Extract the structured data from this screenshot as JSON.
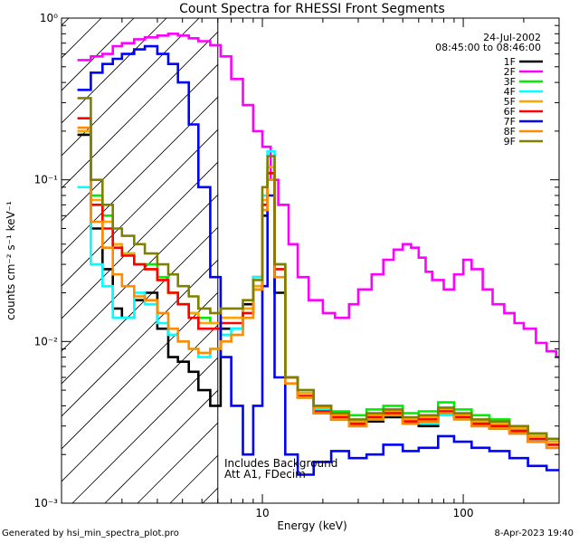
{
  "footer": {
    "left": "Generated by hsi_min_spectra_plot.pro",
    "right": "8-Apr-2023 19:40"
  },
  "chart_data": {
    "type": "line",
    "title": "Count Spectra for RHESSI Front Segments",
    "subtitle_date": "24-Jul-2002",
    "subtitle_time": "08:45:00 to 08:46:00",
    "xlabel": "Energy (keV)",
    "ylabel": "counts cm⁻² s⁻¹ keV⁻¹",
    "x_scale": "log",
    "y_scale": "log",
    "xlim": [
      1,
      300
    ],
    "ylim": [
      0.001,
      1
    ],
    "x_ticks": [
      {
        "value": 10,
        "label": "10"
      },
      {
        "value": 100,
        "label": "100"
      }
    ],
    "y_ticks": [
      {
        "value": 1,
        "label": "10⁰"
      },
      {
        "value": 0.1,
        "label": "10⁻¹"
      },
      {
        "value": 0.01,
        "label": "10⁻²"
      },
      {
        "value": 0.001,
        "label": "10⁻³"
      }
    ],
    "hatched_region": {
      "x_from": 1,
      "x_to": 6
    },
    "annotations": [
      "Includes Background",
      "Att A1, FDecim"
    ],
    "legend_position": "top-right",
    "series": [
      {
        "name": "1F",
        "color": "#000000",
        "x": [
          1.2,
          1.4,
          1.6,
          1.8,
          2.0,
          2.3,
          2.6,
          3.0,
          3.4,
          3.8,
          4.3,
          4.8,
          5.5,
          6.2,
          7.0,
          8.0,
          9.0,
          10.0,
          10.6,
          11.5,
          13,
          15,
          18,
          22,
          27,
          33,
          40,
          50,
          60,
          75,
          90,
          110,
          135,
          170,
          210,
          260
        ],
        "y": [
          0.19,
          0.05,
          0.028,
          0.016,
          0.014,
          0.018,
          0.02,
          0.012,
          0.008,
          0.0075,
          0.0065,
          0.005,
          0.004,
          0.012,
          0.012,
          0.017,
          0.025,
          0.06,
          0.11,
          0.02,
          0.006,
          0.0045,
          0.0036,
          0.0033,
          0.003,
          0.0032,
          0.0034,
          0.0031,
          0.003,
          0.0036,
          0.0034,
          0.003,
          0.0029,
          0.0027,
          0.0024,
          0.0022
        ]
      },
      {
        "name": "2F",
        "color": "#ff00ff",
        "x": [
          1.2,
          1.4,
          1.6,
          1.8,
          2.0,
          2.3,
          2.6,
          3.0,
          3.4,
          3.8,
          4.3,
          4.8,
          5.5,
          6.2,
          7.0,
          8.0,
          9.0,
          10.0,
          11,
          12,
          13.5,
          15,
          17,
          20,
          23,
          27,
          30,
          35,
          40,
          45,
          50,
          55,
          60,
          65,
          70,
          80,
          90,
          100,
          110,
          125,
          140,
          160,
          180,
          200,
          230,
          260,
          290
        ],
        "y": [
          0.55,
          0.58,
          0.6,
          0.67,
          0.7,
          0.74,
          0.76,
          0.78,
          0.8,
          0.78,
          0.75,
          0.72,
          0.68,
          0.58,
          0.42,
          0.29,
          0.2,
          0.16,
          0.1,
          0.07,
          0.04,
          0.025,
          0.018,
          0.015,
          0.014,
          0.017,
          0.021,
          0.026,
          0.032,
          0.037,
          0.04,
          0.038,
          0.033,
          0.027,
          0.024,
          0.021,
          0.026,
          0.032,
          0.028,
          0.021,
          0.017,
          0.015,
          0.013,
          0.012,
          0.0098,
          0.0087,
          0.008
        ]
      },
      {
        "name": "3F",
        "color": "#00ee00",
        "x": [
          1.2,
          1.4,
          1.6,
          1.8,
          2.0,
          2.3,
          2.6,
          3.0,
          3.4,
          3.8,
          4.3,
          4.8,
          5.5,
          6.2,
          7.0,
          8.0,
          9.0,
          10.0,
          10.6,
          11.5,
          13,
          15,
          18,
          22,
          27,
          33,
          40,
          50,
          60,
          75,
          90,
          110,
          135,
          170,
          210,
          260
        ],
        "y": [
          0.2,
          0.08,
          0.06,
          0.04,
          0.035,
          0.03,
          0.03,
          0.025,
          0.02,
          0.017,
          0.015,
          0.014,
          0.013,
          0.014,
          0.014,
          0.016,
          0.022,
          0.07,
          0.12,
          0.03,
          0.006,
          0.005,
          0.004,
          0.0037,
          0.0035,
          0.0038,
          0.004,
          0.0036,
          0.0037,
          0.0042,
          0.0038,
          0.0035,
          0.0033,
          0.003,
          0.0027,
          0.0025
        ]
      },
      {
        "name": "4F",
        "color": "#00ffff",
        "x": [
          1.2,
          1.4,
          1.6,
          1.8,
          2.0,
          2.3,
          2.6,
          3.0,
          3.4,
          3.8,
          4.3,
          4.8,
          5.5,
          6.2,
          7.0,
          8.0,
          9.0,
          10.0,
          10.6,
          11.5,
          13,
          15,
          18,
          22,
          27,
          33,
          40,
          50,
          60,
          75,
          90,
          110,
          135,
          170,
          210,
          260
        ],
        "y": [
          0.09,
          0.03,
          0.022,
          0.014,
          0.014,
          0.02,
          0.017,
          0.013,
          0.011,
          0.01,
          0.009,
          0.008,
          0.009,
          0.011,
          0.012,
          0.016,
          0.025,
          0.08,
          0.15,
          0.03,
          0.006,
          0.0048,
          0.0038,
          0.0034,
          0.0031,
          0.0033,
          0.0035,
          0.0032,
          0.0031,
          0.0035,
          0.0033,
          0.0031,
          0.003,
          0.0028,
          0.0025,
          0.0023
        ]
      },
      {
        "name": "5F",
        "color": "#ffa500",
        "x": [
          1.2,
          1.4,
          1.6,
          1.8,
          2.0,
          2.3,
          2.6,
          3.0,
          3.4,
          3.8,
          4.3,
          4.8,
          5.5,
          6.2,
          7.0,
          8.0,
          9.0,
          10.0,
          10.6,
          11.5,
          13,
          15,
          18,
          22,
          27,
          33,
          40,
          50,
          60,
          75,
          90,
          110,
          135,
          170,
          210,
          260
        ],
        "y": [
          0.2,
          0.075,
          0.055,
          0.04,
          0.035,
          0.03,
          0.028,
          0.024,
          0.02,
          0.017,
          0.015,
          0.013,
          0.013,
          0.014,
          0.014,
          0.016,
          0.022,
          0.075,
          0.12,
          0.03,
          0.006,
          0.0048,
          0.0039,
          0.0035,
          0.0032,
          0.0035,
          0.0037,
          0.0033,
          0.0034,
          0.0038,
          0.0035,
          0.0032,
          0.0031,
          0.0029,
          0.0026,
          0.0024
        ]
      },
      {
        "name": "6F",
        "color": "#ff0000",
        "x": [
          1.2,
          1.4,
          1.6,
          1.8,
          2.0,
          2.3,
          2.6,
          3.0,
          3.4,
          3.8,
          4.3,
          4.8,
          5.5,
          6.2,
          7.0,
          8.0,
          9.0,
          10.0,
          10.6,
          11.5,
          13,
          15,
          18,
          22,
          27,
          33,
          40,
          50,
          60,
          75,
          90,
          110,
          135,
          170,
          210,
          260
        ],
        "y": [
          0.24,
          0.07,
          0.05,
          0.038,
          0.034,
          0.03,
          0.028,
          0.024,
          0.02,
          0.017,
          0.014,
          0.012,
          0.012,
          0.013,
          0.013,
          0.015,
          0.021,
          0.07,
          0.11,
          0.028,
          0.006,
          0.0046,
          0.0037,
          0.0034,
          0.0031,
          0.0034,
          0.0036,
          0.0032,
          0.0033,
          0.0037,
          0.0034,
          0.0031,
          0.003,
          0.0028,
          0.0025,
          0.0023
        ]
      },
      {
        "name": "7F",
        "color": "#0000ff",
        "x": [
          1.2,
          1.4,
          1.6,
          1.8,
          2.0,
          2.3,
          2.6,
          3.0,
          3.4,
          3.8,
          4.3,
          4.8,
          5.5,
          6.2,
          7.0,
          8.0,
          9.0,
          10.0,
          10.6,
          11.5,
          13,
          15,
          18,
          22,
          27,
          33,
          40,
          50,
          60,
          75,
          90,
          110,
          135,
          170,
          210,
          260
        ],
        "y": [
          0.36,
          0.46,
          0.52,
          0.56,
          0.6,
          0.64,
          0.67,
          0.6,
          0.52,
          0.4,
          0.22,
          0.09,
          0.025,
          0.008,
          0.004,
          0.002,
          0.004,
          0.022,
          0.08,
          0.006,
          0.002,
          0.0015,
          0.0018,
          0.0021,
          0.0019,
          0.002,
          0.0023,
          0.0021,
          0.0022,
          0.0026,
          0.0024,
          0.0022,
          0.0021,
          0.0019,
          0.0017,
          0.0016
        ]
      },
      {
        "name": "8F",
        "color": "#ff8c00",
        "x": [
          1.2,
          1.4,
          1.6,
          1.8,
          2.0,
          2.3,
          2.6,
          3.0,
          3.4,
          3.8,
          4.3,
          4.8,
          5.5,
          6.2,
          7.0,
          8.0,
          9.0,
          10.0,
          10.6,
          11.5,
          13,
          15,
          18,
          22,
          27,
          33,
          40,
          50,
          60,
          75,
          90,
          110,
          135,
          170,
          210,
          260
        ],
        "y": [
          0.21,
          0.055,
          0.038,
          0.026,
          0.022,
          0.019,
          0.018,
          0.015,
          0.012,
          0.01,
          0.009,
          0.0085,
          0.009,
          0.01,
          0.011,
          0.014,
          0.021,
          0.065,
          0.1,
          0.025,
          0.0055,
          0.0045,
          0.0036,
          0.0033,
          0.003,
          0.0033,
          0.0035,
          0.0031,
          0.0032,
          0.0036,
          0.0033,
          0.003,
          0.0029,
          0.0027,
          0.0024,
          0.0022
        ]
      },
      {
        "name": "9F",
        "color": "#808000",
        "x": [
          1.2,
          1.4,
          1.6,
          1.8,
          2.0,
          2.3,
          2.6,
          3.0,
          3.4,
          3.8,
          4.3,
          4.8,
          5.5,
          6.2,
          7.0,
          8.0,
          9.0,
          10.0,
          10.6,
          11.5,
          13,
          15,
          18,
          22,
          27,
          33,
          40,
          50,
          60,
          75,
          90,
          110,
          135,
          170,
          210,
          260
        ],
        "y": [
          0.32,
          0.1,
          0.07,
          0.05,
          0.045,
          0.04,
          0.035,
          0.03,
          0.026,
          0.022,
          0.019,
          0.016,
          0.015,
          0.016,
          0.016,
          0.018,
          0.024,
          0.09,
          0.14,
          0.03,
          0.006,
          0.005,
          0.004,
          0.0036,
          0.0033,
          0.0036,
          0.0038,
          0.0034,
          0.0035,
          0.0039,
          0.0036,
          0.0033,
          0.0032,
          0.003,
          0.0027,
          0.0025
        ]
      }
    ]
  }
}
